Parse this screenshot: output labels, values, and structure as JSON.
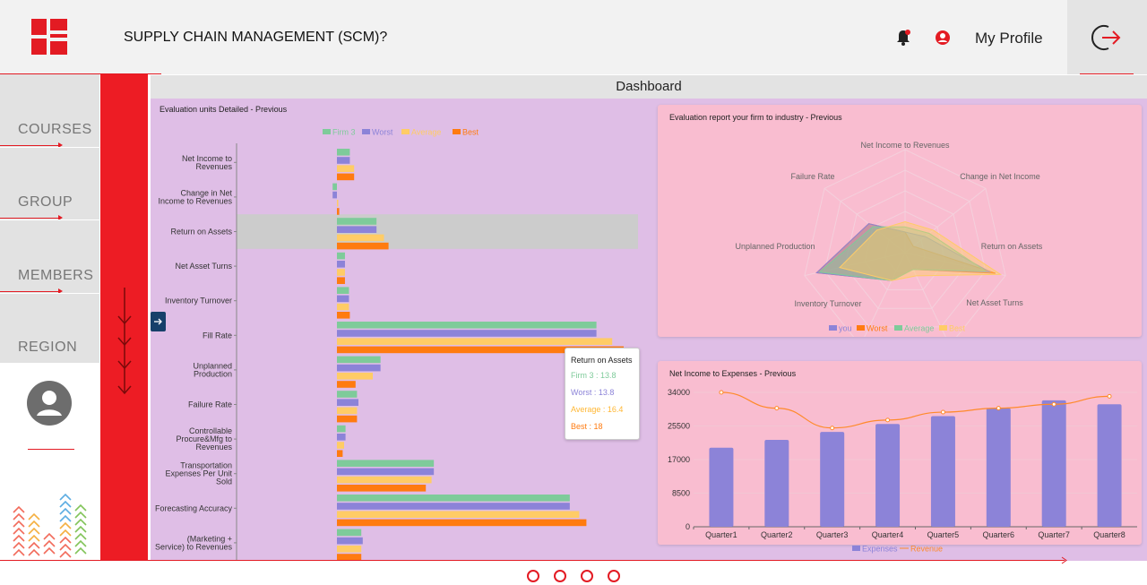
{
  "header": {
    "title": "SUPPLY CHAIN MANAGEMENT (SCM)?",
    "profile_label": "My Profile"
  },
  "nav": {
    "items": [
      "COURSES",
      "GROUP",
      "MEMBERS",
      "REGION"
    ]
  },
  "dashboard": {
    "title": "Dashboard"
  },
  "colors": {
    "firm": "#7ecb9a",
    "worst": "#8c83d8",
    "average": "#ffcc66",
    "best": "#ff7b10",
    "brand_red": "#ed1c24"
  },
  "chart_data": [
    {
      "type": "bar",
      "orientation": "horizontal",
      "title": "Evaluation units Detailed - Previous",
      "legend": [
        "Firm 3",
        "Worst",
        "Average",
        "Best"
      ],
      "legend_position": "top",
      "categories": [
        "Net Income to Revenues",
        "Change in Net Income to Revenues",
        "Return on Assets",
        "Net Asset Turns",
        "Inventory Turnover",
        "Fill Rate",
        "Unplanned Production",
        "Failure Rate",
        "Controllable Procure&Mfg to Revenues",
        "Transportation Expenses Per Unit Sold",
        "Forecasting Accuracy",
        "(Marketing + Service) to Revenues"
      ],
      "category_lines": [
        [
          "Net Income to",
          "Revenues"
        ],
        [
          "Change in Net",
          "Income to Revenues"
        ],
        [
          "Return on Assets"
        ],
        [
          "Net Asset Turns"
        ],
        [
          "Inventory Turnover"
        ],
        [
          "Fill Rate"
        ],
        [
          "Unplanned",
          "Production"
        ],
        [
          "Failure Rate"
        ],
        [
          "Controllable",
          "Procure&Mfg to",
          "Revenues"
        ],
        [
          "Transportation",
          "Expenses Per Unit",
          "Sold"
        ],
        [
          "Forecasting Accuracy"
        ],
        [
          "(Marketing +",
          "Service) to Revenues"
        ]
      ],
      "series": [
        {
          "name": "Firm 3",
          "values": [
            4.5,
            -1.5,
            13.8,
            2.8,
            4.2,
            90.5,
            15.2,
            7.0,
            3.0,
            33.8,
            81.2,
            8.5
          ]
        },
        {
          "name": "Worst",
          "values": [
            4.5,
            -1.5,
            13.8,
            2.8,
            4.2,
            90.5,
            15.2,
            7.5,
            3.0,
            33.8,
            81.2,
            9.0
          ]
        },
        {
          "name": "Average",
          "values": [
            6.0,
            0,
            16.4,
            2.8,
            4.2,
            96.0,
            12.5,
            7.0,
            2.5,
            33.0,
            84.5,
            8.5
          ]
        },
        {
          "name": "Best",
          "values": [
            6.0,
            0.8,
            18.0,
            2.8,
            4.5,
            100.0,
            6.5,
            7.0,
            2.0,
            31.0,
            87.0,
            8.5
          ]
        }
      ],
      "highlighted_category": "Return on Assets",
      "xlim": [
        -5,
        105
      ],
      "tooltip": {
        "title": "Return on Assets",
        "lines": [
          "Firm 3 : 13.8",
          "Worst : 13.8",
          "Average : 16.4",
          "Best : 18"
        ]
      }
    },
    {
      "type": "radar",
      "title": "Evaluation report your firm to industry - Previous",
      "axes": [
        "Net Income to Revenues",
        "Change in Net Income",
        "Return on Assets",
        "Net Asset Turns",
        "Inventory Turnover",
        "Unplanned Production",
        "Failure Rate"
      ],
      "legend": [
        "you",
        "Worst",
        "Average",
        "Best"
      ],
      "legend_position": "bottom",
      "series": [
        {
          "name": "you",
          "values": [
            0.2,
            0.25,
            0.85,
            0.18,
            0.3,
            0.88,
            0.45
          ]
        },
        {
          "name": "Worst",
          "values": [
            0.2,
            0.1,
            0.9,
            0.18,
            0.3,
            0.88,
            0.45
          ]
        },
        {
          "name": "Average",
          "values": [
            0.25,
            0.3,
            0.8,
            0.18,
            0.3,
            0.85,
            0.4
          ]
        },
        {
          "name": "Best",
          "values": [
            0.3,
            0.35,
            0.95,
            0.25,
            0.3,
            0.65,
            0.35
          ]
        }
      ]
    },
    {
      "type": "bar+line",
      "title": "Net Income to Expenses - Previous",
      "categories": [
        "Quarter1",
        "Quarter2",
        "Quarter3",
        "Quarter4",
        "Quarter5",
        "Quarter6",
        "Quarter7",
        "Quarter8"
      ],
      "series": [
        {
          "name": "Expenses",
          "type": "bar",
          "values": [
            20000,
            22000,
            24000,
            26000,
            28000,
            30000,
            32000,
            31000
          ]
        },
        {
          "name": "Revenue",
          "type": "line",
          "values": [
            34000,
            30000,
            25000,
            27000,
            29000,
            30000,
            31000,
            33000
          ]
        }
      ],
      "yticks": [
        "0",
        "8500",
        "17000",
        "25500",
        "34000"
      ],
      "ylim": [
        0,
        34000
      ],
      "legend": [
        "Expenses",
        "Revenue"
      ],
      "legend_position": "bottom"
    }
  ]
}
